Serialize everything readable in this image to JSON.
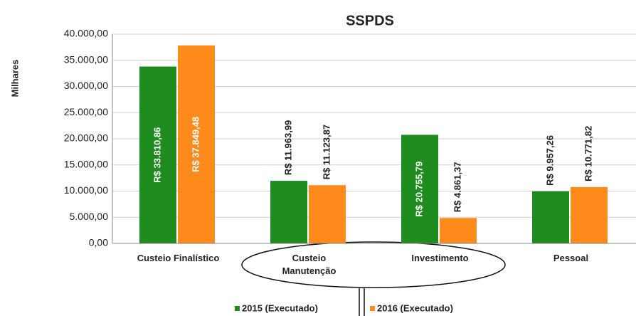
{
  "chart_data": {
    "type": "bar",
    "title": "SSPDS",
    "y_label": "Milhares",
    "categories": [
      "Custeio Finalístico",
      "Custeio Manutenção",
      "Investimento",
      "Pessoal"
    ],
    "series": [
      {
        "name": "2015 (Executado)",
        "color": "#1e8c1e",
        "values": [
          33810.86,
          11963.99,
          20755.79,
          9957.26
        ],
        "value_labels": [
          "R$ 33.810,86",
          "R$ 11.963,99",
          "R$ 20.755,79",
          "R$ 9.957,26"
        ]
      },
      {
        "name": "2016 (Executado)",
        "color": "#ff8a1c",
        "values": [
          37849.48,
          11123.87,
          4861.37,
          10771.82
        ],
        "value_labels": [
          "R$ 37.849,48",
          "R$ 11.123,87",
          "R$ 4.861,37",
          "R$ 10.771,82"
        ]
      }
    ],
    "ylim": [
      0,
      40000
    ],
    "yticks": [
      {
        "value": 0,
        "label": "0,00"
      },
      {
        "value": 5000,
        "label": "5.000,00"
      },
      {
        "value": 10000,
        "label": "10.000,00"
      },
      {
        "value": 15000,
        "label": "15.000,00"
      },
      {
        "value": 20000,
        "label": "20.000,00"
      },
      {
        "value": 25000,
        "label": "25.000,00"
      },
      {
        "value": 30000,
        "label": "30.000,00"
      },
      {
        "value": 35000,
        "label": "35.000,00"
      },
      {
        "value": 40000,
        "label": "40.000,00"
      }
    ],
    "grid": true
  }
}
